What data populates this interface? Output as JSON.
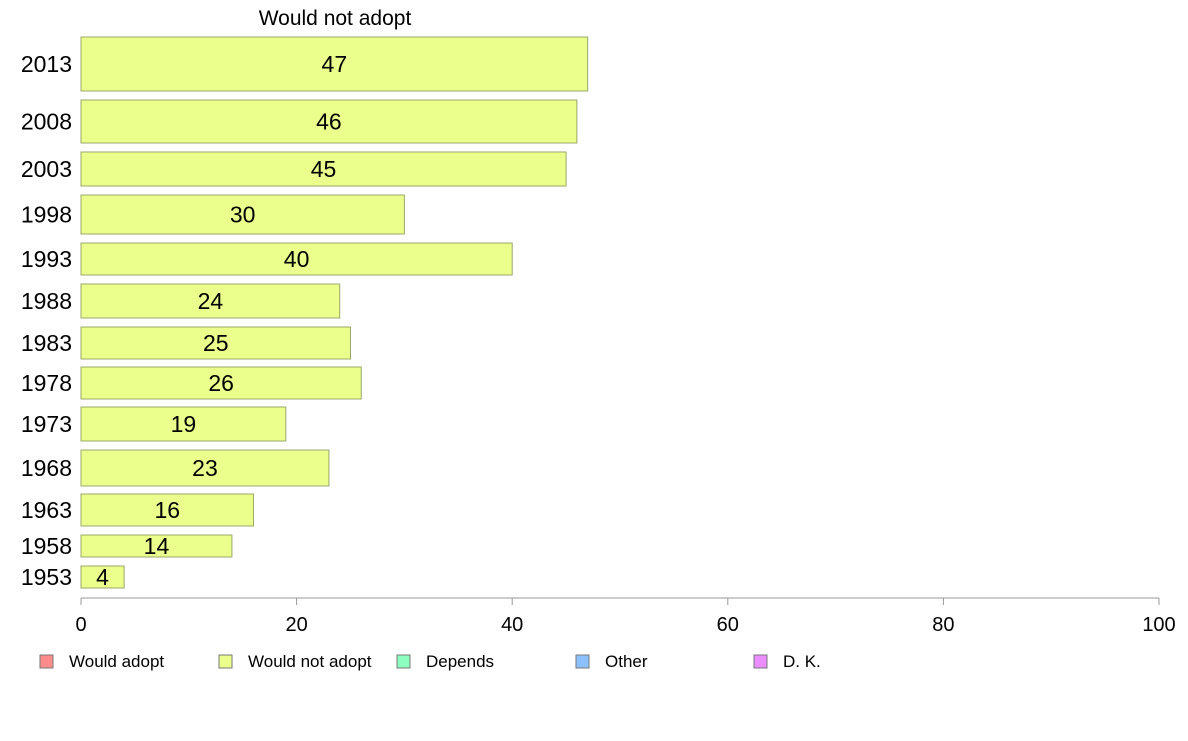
{
  "chart_data": {
    "type": "bar",
    "orientation": "horizontal",
    "title": "Would not adopt",
    "categories": [
      "2013",
      "2008",
      "2003",
      "1998",
      "1993",
      "1988",
      "1983",
      "1978",
      "1973",
      "1968",
      "1963",
      "1958",
      "1953"
    ],
    "values": [
      47,
      46,
      45,
      30,
      40,
      24,
      25,
      26,
      19,
      23,
      16,
      14,
      4
    ],
    "series_name": "Would not adopt",
    "xlim": [
      0,
      100
    ],
    "xticks": [
      "0",
      "20",
      "40",
      "60",
      "80",
      "100"
    ],
    "grid": false,
    "bar_color": "#ebff8c",
    "bar_edge_color": "#98a86a",
    "legend": {
      "placement": "bottom",
      "items": [
        {
          "label": "Would adopt",
          "color": "#ff8c8c"
        },
        {
          "label": "Would not adopt",
          "color": "#ebff8c"
        },
        {
          "label": "Depends",
          "color": "#8cffc0"
        },
        {
          "label": "Other",
          "color": "#8cc0ff"
        },
        {
          "label": "D. K.",
          "color": "#eb8cff"
        }
      ]
    }
  }
}
